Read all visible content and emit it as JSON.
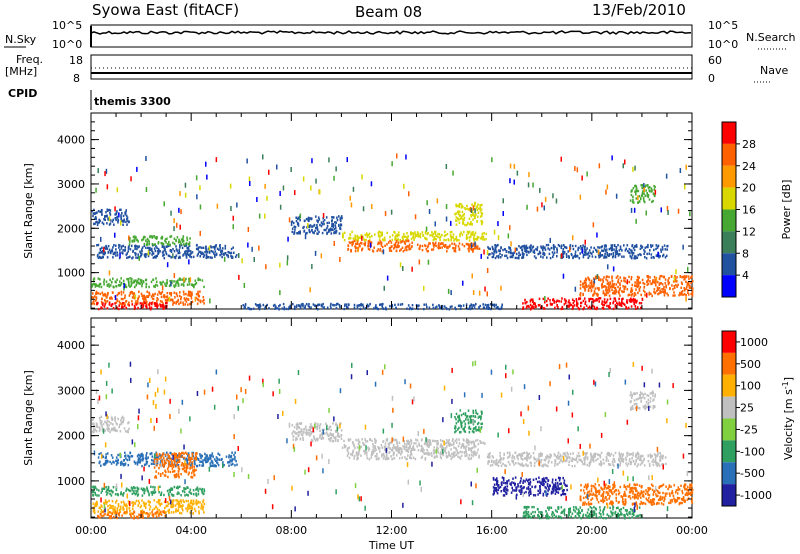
{
  "header": {
    "title": "Syowa East (fitACF)",
    "beam": "Beam 08",
    "date": "13/Feb/2010"
  },
  "strip_labels": {
    "nsky": "N.Sky",
    "nsky_hi": "10^5",
    "nsky_lo": "10^0",
    "nsearch": "N.Search",
    "nsearch_hi": "10^5",
    "nsearch_lo": "10^0",
    "freq_a": "Freq.",
    "freq_b": "[MHz]",
    "freq_hi": "18",
    "freq_lo": "8",
    "nave": "Nave",
    "nave_hi": "60",
    "nave_lo": "0",
    "cpid": "CPID",
    "cpid_value": "themis 3300"
  },
  "chart_data": [
    {
      "type": "heatmap",
      "name": "power",
      "ylabel": "Slant Range [km]",
      "xlabel": "",
      "x_ticks": [
        "00:00",
        "04:00",
        "08:00",
        "12:00",
        "16:00",
        "20:00",
        "00:00"
      ],
      "x_range": [
        0,
        24
      ],
      "y_ticks": [
        "1000",
        "2000",
        "3000",
        "4000"
      ],
      "y_range": [
        180,
        4600
      ],
      "colorbar_label": "Power [dB]",
      "colorbar_ticks": [
        "4",
        "8",
        "12",
        "16",
        "20",
        "24",
        "28"
      ],
      "colorbar_colors": [
        "#0000ff",
        "#2052a0",
        "#3a7f5a",
        "#46a832",
        "#d8d800",
        "#ff9900",
        "#ff6000",
        "#ff0000"
      ],
      "regions": [
        {
          "x": [
            0.0,
            1.5
          ],
          "y": [
            2100,
            2450
          ],
          "color": "#2050a0"
        },
        {
          "x": [
            0.2,
            5.8
          ],
          "y": [
            1350,
            1650
          ],
          "color": "#2050a0"
        },
        {
          "x": [
            1.5,
            4.0
          ],
          "y": [
            1650,
            1850
          ],
          "color": "#46a832"
        },
        {
          "x": [
            0.0,
            4.5
          ],
          "y": [
            700,
            900
          ],
          "color": "#46a832"
        },
        {
          "x": [
            0.0,
            4.5
          ],
          "y": [
            300,
            600
          ],
          "color": "#ff6000"
        },
        {
          "x": [
            0.2,
            3.0
          ],
          "y": [
            200,
            350
          ],
          "color": "#ff0000"
        },
        {
          "x": [
            8.0,
            10.0
          ],
          "y": [
            1900,
            2300
          ],
          "color": "#2050a0"
        },
        {
          "x": [
            10.0,
            15.8
          ],
          "y": [
            1750,
            1950
          ],
          "color": "#d8d800"
        },
        {
          "x": [
            10.2,
            12.8
          ],
          "y": [
            1500,
            1750
          ],
          "color": "#ff6000"
        },
        {
          "x": [
            13.0,
            15.5
          ],
          "y": [
            1500,
            1700
          ],
          "color": "#ff6000"
        },
        {
          "x": [
            14.5,
            15.6
          ],
          "y": [
            2100,
            2600
          ],
          "color": "#d8d800"
        },
        {
          "x": [
            15.8,
            23.0
          ],
          "y": [
            1350,
            1650
          ],
          "color": "#2050a0"
        },
        {
          "x": [
            17.2,
            22.0
          ],
          "y": [
            200,
            450
          ],
          "color": "#ff0000"
        },
        {
          "x": [
            19.5,
            24.0
          ],
          "y": [
            500,
            950
          ],
          "color": "#ff6000"
        },
        {
          "x": [
            21.5,
            22.5
          ],
          "y": [
            2600,
            3000
          ],
          "color": "#46a832"
        },
        {
          "x": [
            6.0,
            16.5
          ],
          "y": [
            200,
            320
          ],
          "color": "#2050a0"
        }
      ]
    },
    {
      "type": "heatmap",
      "name": "velocity",
      "ylabel": "Slant Range [km]",
      "xlabel": "Time UT",
      "x_ticks": [
        "00:00",
        "04:00",
        "08:00",
        "12:00",
        "16:00",
        "20:00",
        "00:00"
      ],
      "x_range": [
        0,
        24
      ],
      "y_ticks": [
        "1000",
        "2000",
        "3000",
        "4000"
      ],
      "y_range": [
        180,
        4600
      ],
      "colorbar_label": "Velocity [m s^-1]",
      "colorbar_ticks": [
        "1000",
        "500",
        "100",
        "25",
        "-25",
        "-100",
        "-500",
        "-1000"
      ],
      "colorbar_colors": [
        "#2020a0",
        "#2a70b8",
        "#30a060",
        "#80d040",
        "#c0c0c0",
        "#ffb000",
        "#ff7000",
        "#ff0000"
      ],
      "regions": [
        {
          "x": [
            0.0,
            1.5
          ],
          "y": [
            2100,
            2450
          ],
          "color": "#c0c0c0"
        },
        {
          "x": [
            0.2,
            5.8
          ],
          "y": [
            1350,
            1650
          ],
          "color": "#2a70b8"
        },
        {
          "x": [
            2.5,
            4.2
          ],
          "y": [
            1100,
            1650
          ],
          "color": "#ff7000"
        },
        {
          "x": [
            0.0,
            4.5
          ],
          "y": [
            700,
            900
          ],
          "color": "#30a060"
        },
        {
          "x": [
            0.0,
            4.5
          ],
          "y": [
            300,
            600
          ],
          "color": "#ffb000"
        },
        {
          "x": [
            0.2,
            3.0
          ],
          "y": [
            200,
            350
          ],
          "color": "#ff7000"
        },
        {
          "x": [
            8.0,
            10.0
          ],
          "y": [
            1900,
            2300
          ],
          "color": "#c0c0c0"
        },
        {
          "x": [
            10.0,
            15.8
          ],
          "y": [
            1750,
            1950
          ],
          "color": "#c0c0c0"
        },
        {
          "x": [
            10.2,
            15.5
          ],
          "y": [
            1500,
            1750
          ],
          "color": "#c0c0c0"
        },
        {
          "x": [
            14.5,
            15.6
          ],
          "y": [
            2100,
            2600
          ],
          "color": "#30a060"
        },
        {
          "x": [
            15.8,
            23.0
          ],
          "y": [
            1350,
            1650
          ],
          "color": "#c0c0c0"
        },
        {
          "x": [
            16.0,
            19.0
          ],
          "y": [
            700,
            1100
          ],
          "color": "#2020a0"
        },
        {
          "x": [
            19.5,
            24.0
          ],
          "y": [
            500,
            950
          ],
          "color": "#ff7000"
        },
        {
          "x": [
            17.2,
            22.0
          ],
          "y": [
            200,
            450
          ],
          "color": "#30a060"
        },
        {
          "x": [
            21.5,
            22.5
          ],
          "y": [
            2600,
            3000
          ],
          "color": "#c0c0c0"
        }
      ]
    }
  ]
}
